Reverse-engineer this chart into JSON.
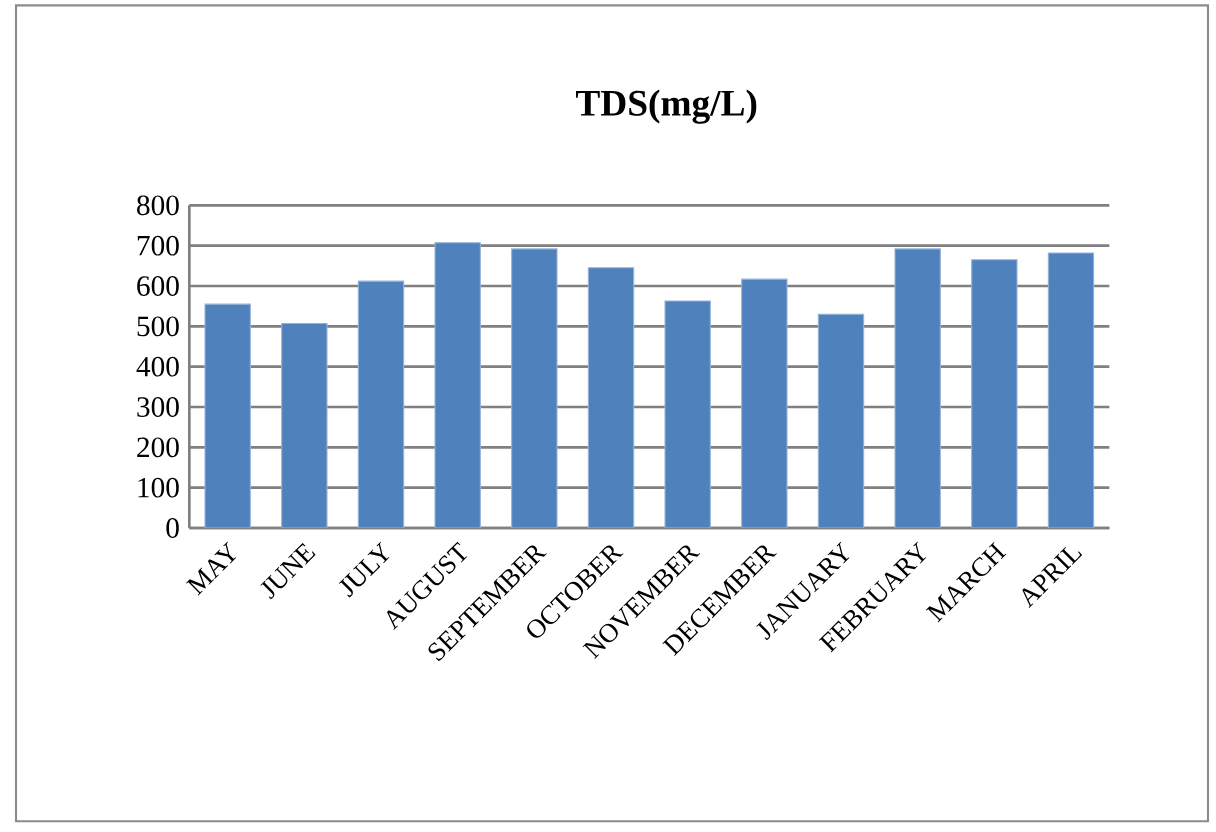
{
  "chart_data": {
    "type": "bar",
    "title": "TDS(mg/L)",
    "categories": [
      "MAY",
      "JUNE",
      "JULY",
      "AUGUST",
      "SEPTEMBER",
      "OCTOBER",
      "NOVEMBER",
      "DECEMBER",
      "JANUARY",
      "FEBRUARY",
      "MARCH",
      "APRIL"
    ],
    "values": [
      555,
      507,
      612,
      707,
      692,
      645,
      563,
      617,
      530,
      692,
      665,
      682
    ],
    "color": "#4f81bd",
    "ylim": [
      0,
      800
    ],
    "yticks": [
      0,
      100,
      200,
      300,
      400,
      500,
      600,
      700,
      800
    ],
    "grid": "y"
  }
}
